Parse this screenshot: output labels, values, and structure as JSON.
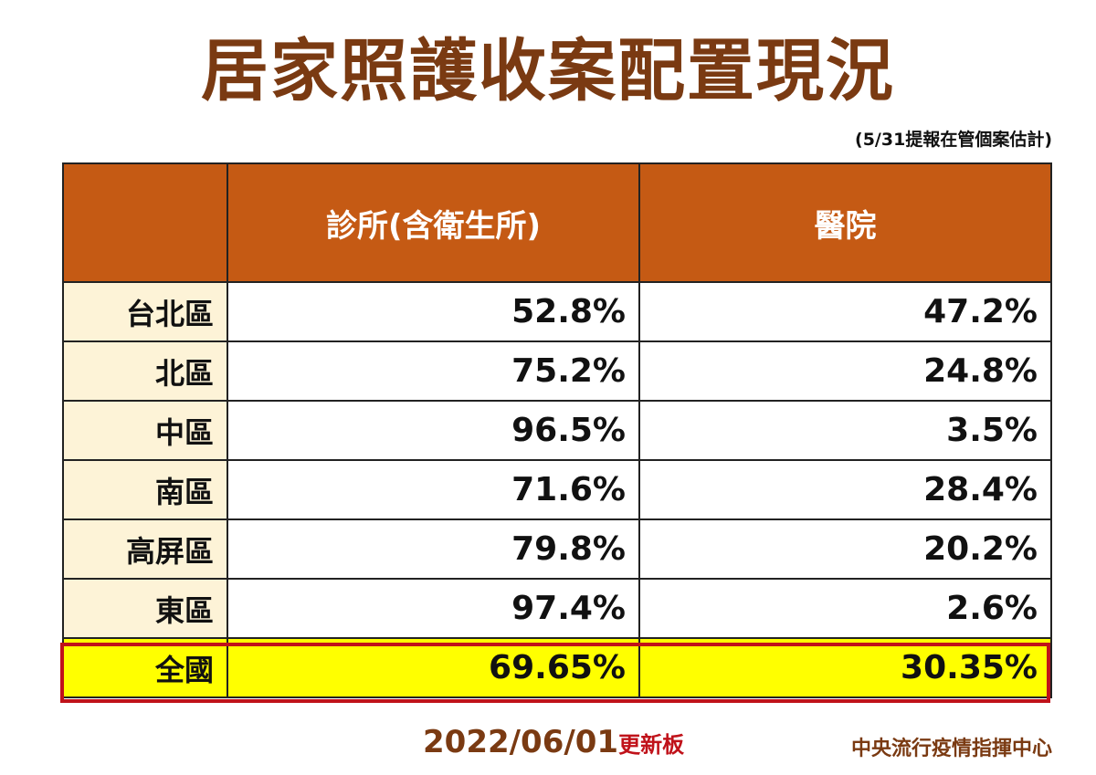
{
  "title": "居家照護收案配置現況",
  "subtitle": "(5/31提報在管個案估計)",
  "table": {
    "headers": [
      "",
      "診所(含衛生所)",
      "醫院"
    ],
    "rows": [
      {
        "region": "台北區",
        "clinic": "52.8%",
        "hospital": "47.2%"
      },
      {
        "region": "北區",
        "clinic": "75.2%",
        "hospital": "24.8%"
      },
      {
        "region": "中區",
        "clinic": "96.5%",
        "hospital": "3.5%"
      },
      {
        "region": "南區",
        "clinic": "71.6%",
        "hospital": "28.4%"
      },
      {
        "region": "高屏區",
        "clinic": "79.8%",
        "hospital": "20.2%"
      },
      {
        "region": "東區",
        "clinic": "97.4%",
        "hospital": "2.6%"
      }
    ],
    "total": {
      "region": "全國",
      "clinic": "69.65%",
      "hospital": "30.35%"
    }
  },
  "footer": {
    "date": "2022/06/01",
    "date_suffix": "更新板",
    "organization": "中央流行疫情指揮中心"
  },
  "colors": {
    "title": "#7a3a12",
    "header_bg": "#c55a14",
    "region_bg": "#fdf3d7",
    "total_bg": "#ffff00",
    "total_outline": "#c0121a"
  }
}
